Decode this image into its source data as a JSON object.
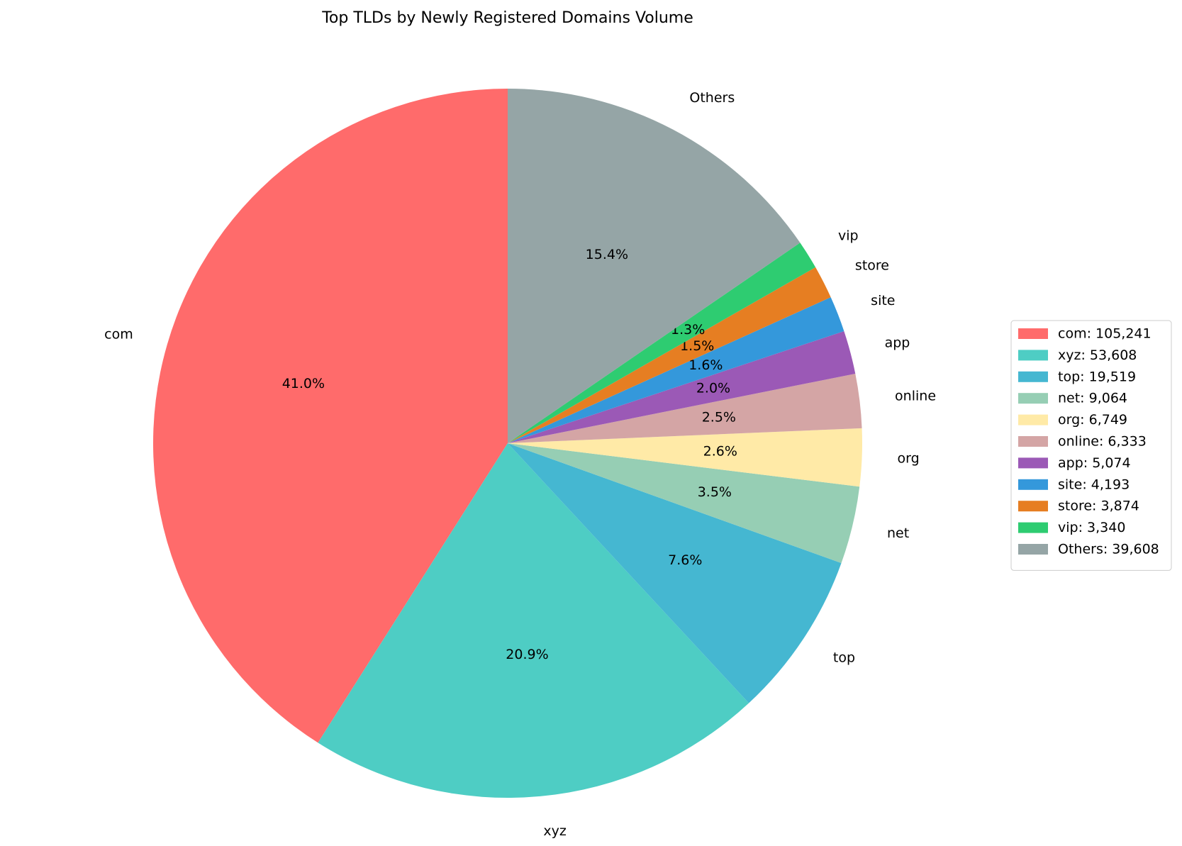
{
  "chart_data": {
    "type": "pie",
    "title": "Top TLDs by Newly Registered Domains Volume",
    "categories": [
      "com",
      "xyz",
      "top",
      "net",
      "org",
      "online",
      "app",
      "site",
      "store",
      "vip",
      "Others"
    ],
    "values": [
      105241,
      53608,
      19519,
      9064,
      6749,
      6333,
      5074,
      4193,
      3874,
      3340,
      39608
    ],
    "value_labels": [
      "41.0%",
      "20.9%",
      "7.6%",
      "3.5%",
      "2.6%",
      "2.5%",
      "2.0%",
      "1.6%",
      "1.5%",
      "1.3%",
      "15.4%"
    ],
    "legend_labels": [
      "com: 105,241",
      "xyz: 53,608",
      "top: 19,519",
      "net: 9,064",
      "org: 6,749",
      "online: 6,333",
      "app: 5,074",
      "site: 4,193",
      "store: 3,874",
      "vip: 3,340",
      "Others: 39,608"
    ],
    "colors": [
      "#ff6b6b",
      "#4ecdc4",
      "#45b7d1",
      "#96ceb4",
      "#ffeaa7",
      "#d4a5a5",
      "#9b59b6",
      "#3498db",
      "#e67e22",
      "#2ecc71",
      "#95a5a6"
    ],
    "legend": "right"
  }
}
